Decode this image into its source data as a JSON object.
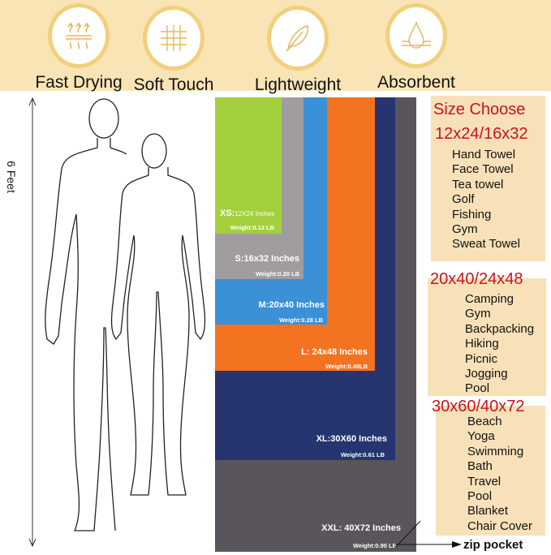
{
  "features": [
    {
      "label": "Fast Drying",
      "icon": "heat-waves-icon"
    },
    {
      "label": "Soft Touch",
      "icon": "fabric-weave-icon"
    },
    {
      "label": "Lightweight",
      "icon": "feather-icon"
    },
    {
      "label": "Absorbent",
      "icon": "water-drop-icon"
    }
  ],
  "height_label": "6 Feet",
  "towels": [
    {
      "size": "XXL: 40X72 Inches",
      "weight": "Weight:0.90 LB",
      "color": "#5a555c"
    },
    {
      "size": "XL:30X60 Inches",
      "weight": "Weight:0.61 LB",
      "color": "#263470"
    },
    {
      "size": "L: 24x48 Inches",
      "weight": "Weight:0.40LB",
      "color": "#f47321"
    },
    {
      "size": "M:20x40 Inches",
      "weight": "Weight:0.28 LB",
      "color": "#3b90d6"
    },
    {
      "size": "S:16x32 Inches",
      "weight": "Weight:0.20 LB",
      "color": "#a09ca0"
    },
    {
      "size_prefix": "XS:",
      "size": "12X24 Inches",
      "weight": "Weight:0.13 LB",
      "color": "#a3d03c"
    }
  ],
  "zip_label": "zip pocket",
  "size_choose": {
    "title": "Size Choose",
    "groups": [
      {
        "sizes": "12x24/16x32",
        "uses": [
          "Hand Towel",
          "Face Towel",
          "Tea towel",
          "Golf",
          "Fishing",
          "Gym",
          "Sweat Towel"
        ]
      },
      {
        "sizes": "20x40/24x48",
        "uses": [
          "Camping",
          "Gym",
          "Backpacking",
          "Hiking",
          "Picnic",
          "Jogging",
          "Pool"
        ]
      },
      {
        "sizes": "30x60/40x72",
        "uses": [
          "Beach",
          "Yoga",
          "Swimming",
          "Bath",
          "Travel",
          "Pool",
          "Blanket",
          "Chair Cover"
        ]
      }
    ]
  }
}
